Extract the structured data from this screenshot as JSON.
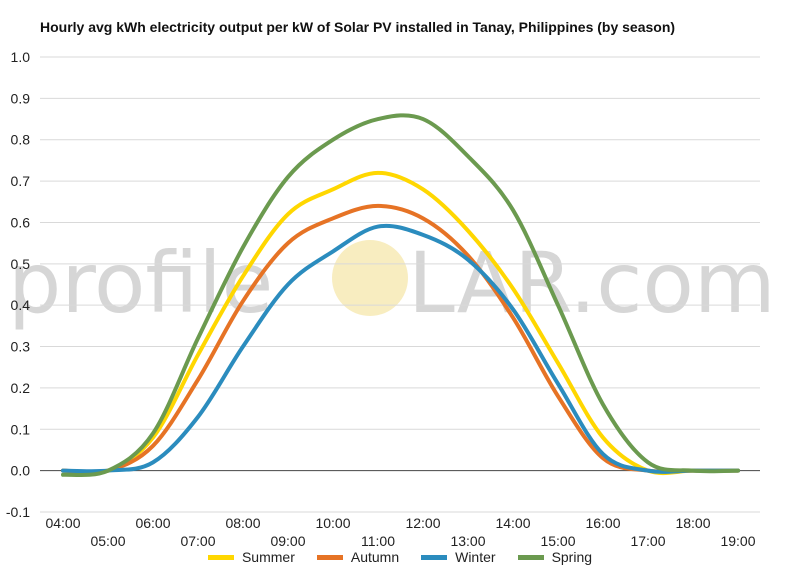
{
  "chart_data": {
    "type": "line",
    "title": "Hourly avg kWh electricity output per kW of Solar PV installed in Tanay, Philippines (by season)",
    "watermark": {
      "left": "profile",
      "right": "LAR.com"
    },
    "x": [
      "04:00",
      "05:00",
      "06:00",
      "07:00",
      "08:00",
      "09:00",
      "10:00",
      "11:00",
      "12:00",
      "13:00",
      "14:00",
      "15:00",
      "16:00",
      "17:00",
      "18:00",
      "19:00"
    ],
    "ylim": [
      -0.1,
      1.0
    ],
    "yticks": [
      "1.0",
      "0.9",
      "0.8",
      "0.7",
      "0.6",
      "0.5",
      "0.4",
      "0.3",
      "0.2",
      "0.1",
      "0.0",
      "-0.1"
    ],
    "grid": true,
    "legend_position": "bottom",
    "series": [
      {
        "name": "Summer",
        "color": "#FFD700",
        "values": [
          0,
          0,
          0.08,
          0.28,
          0.47,
          0.62,
          0.68,
          0.72,
          0.68,
          0.58,
          0.44,
          0.26,
          0.08,
          0,
          0,
          0
        ]
      },
      {
        "name": "Autumn",
        "color": "#E67325",
        "values": [
          0,
          0,
          0.06,
          0.22,
          0.41,
          0.55,
          0.61,
          0.64,
          0.61,
          0.52,
          0.37,
          0.18,
          0.03,
          0,
          0,
          0
        ]
      },
      {
        "name": "Winter",
        "color": "#2B8CBE",
        "values": [
          0,
          0,
          0.02,
          0.13,
          0.3,
          0.45,
          0.53,
          0.59,
          0.57,
          0.51,
          0.39,
          0.21,
          0.04,
          0,
          0,
          0
        ]
      },
      {
        "name": "Spring",
        "color": "#6B9A4F",
        "values": [
          -0.01,
          0,
          0.09,
          0.32,
          0.54,
          0.71,
          0.8,
          0.85,
          0.85,
          0.76,
          0.63,
          0.4,
          0.16,
          0.02,
          0,
          0
        ]
      }
    ]
  }
}
